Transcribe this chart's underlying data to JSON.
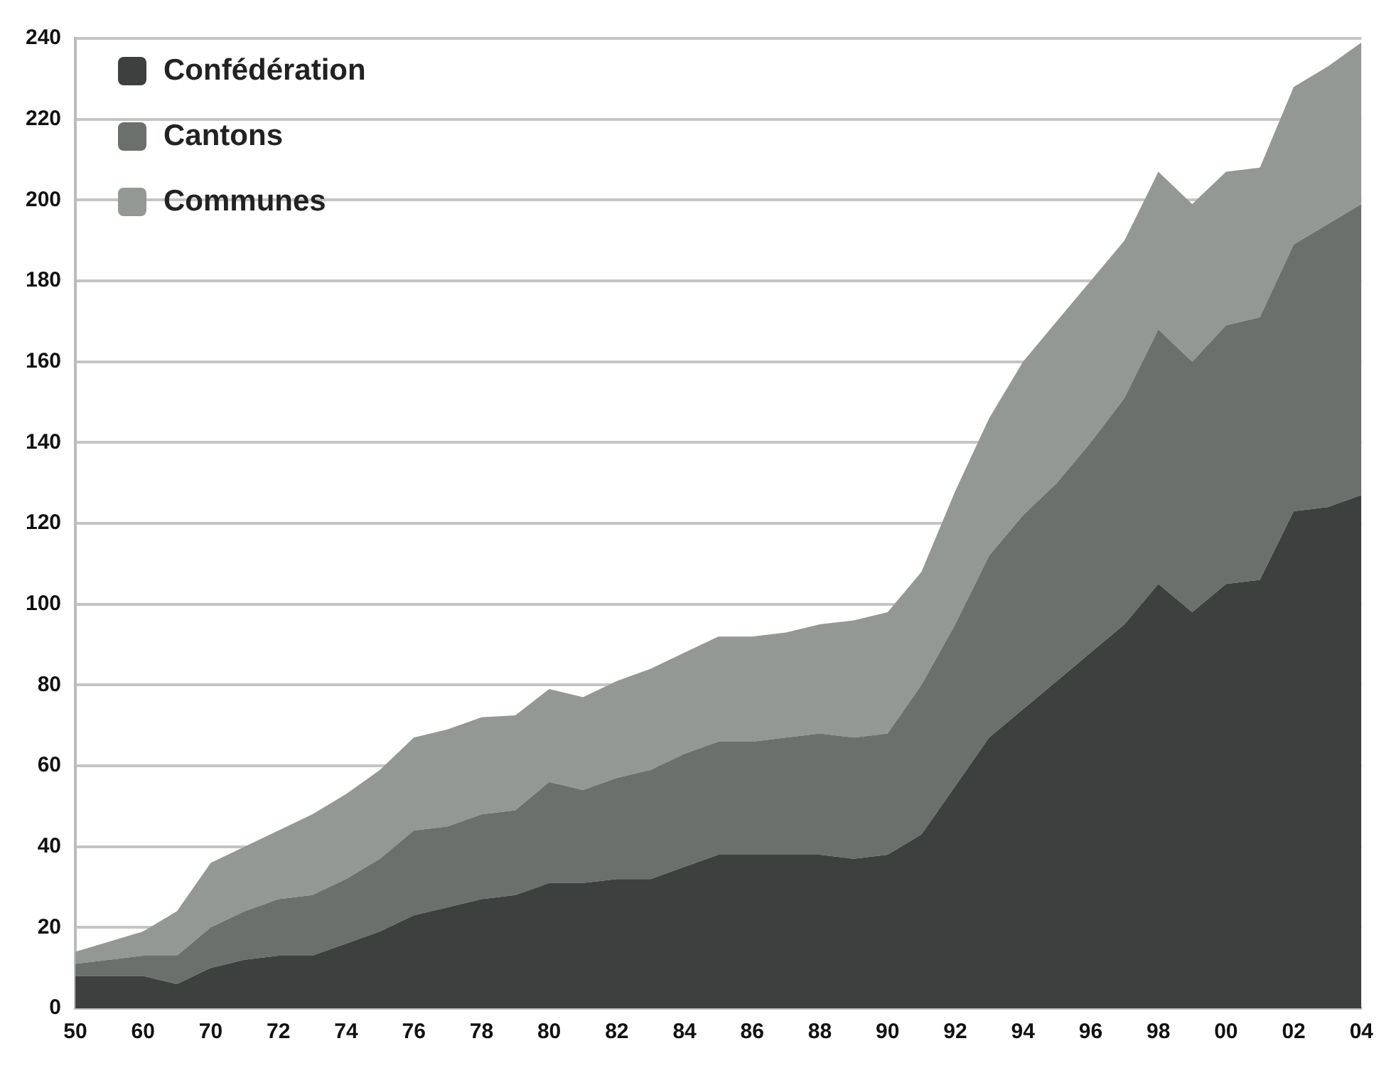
{
  "chart_data": {
    "type": "area",
    "stacked": true,
    "categories": [
      "50",
      null,
      "60",
      null,
      "70",
      null,
      "72",
      null,
      "74",
      null,
      "76",
      null,
      "78",
      null,
      "80",
      null,
      "82",
      null,
      "84",
      null,
      "86",
      null,
      "88",
      null,
      "90",
      null,
      "92",
      null,
      "94",
      null,
      "96",
      null,
      "98",
      null,
      "00",
      null,
      "02",
      null,
      "04"
    ],
    "series": [
      {
        "name": "Confédération",
        "color": "#3d403f",
        "values": [
          8,
          8,
          8,
          6,
          10,
          12,
          13,
          13,
          16,
          19,
          23,
          25,
          27,
          28,
          31,
          31,
          32,
          32,
          35,
          38,
          38,
          38,
          38,
          37,
          38,
          43,
          55,
          67,
          74,
          81,
          88,
          95,
          105,
          98,
          105,
          106,
          123,
          124,
          127
        ]
      },
      {
        "name": "Cantons",
        "color": "#6b706c",
        "values": [
          3,
          4,
          5,
          7,
          10,
          12,
          14,
          15,
          16,
          18,
          21,
          20,
          21,
          21,
          25,
          23,
          25,
          27,
          28,
          28,
          28,
          29,
          30,
          30,
          30,
          37,
          40,
          45,
          48,
          49,
          52,
          56,
          63,
          62,
          64,
          65,
          66,
          70,
          72
        ]
      },
      {
        "name": "Communes",
        "color": "#939894",
        "values": [
          3,
          4.5,
          6,
          11,
          16,
          16,
          17,
          20,
          21,
          22,
          23,
          24,
          24,
          23.5,
          23,
          23,
          24,
          25,
          25,
          26,
          26,
          26,
          27,
          29,
          30,
          28,
          33,
          34,
          38,
          40,
          40,
          39,
          39,
          39,
          38,
          37,
          39,
          39,
          40
        ]
      }
    ],
    "ylim": [
      0,
      240
    ],
    "yticks": [
      0,
      20,
      40,
      60,
      80,
      100,
      120,
      140,
      160,
      180,
      200,
      220,
      240
    ],
    "grid": "y",
    "legend": "top left"
  }
}
